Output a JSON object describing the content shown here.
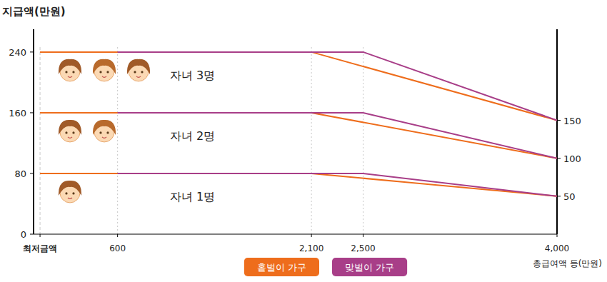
{
  "chart_data": {
    "type": "line",
    "y_label": "지급액(만원)",
    "x_label": "총급여액 등(만원)",
    "xlim": [
      -50,
      4000
    ],
    "xticks": [
      {
        "value": 0,
        "label": "최저금액"
      },
      600,
      {
        "value": 2100,
        "label": "2,100"
      },
      {
        "value": 2500,
        "label": "2,500"
      },
      {
        "value": 4000,
        "label": "4,000"
      }
    ],
    "ylim": [
      0,
      270
    ],
    "yticks": [
      0,
      80,
      160,
      240
    ],
    "y2lim": [
      0,
      270
    ],
    "y2ticks": [
      50,
      100,
      150
    ],
    "grid": true,
    "legend": "bottom",
    "series": [
      {
        "name": "홑벌이 가구",
        "color": "#ee6d1c",
        "group": "자녀 3명",
        "x": [
          0,
          2100,
          4000
        ],
        "values": [
          240,
          240,
          150
        ]
      },
      {
        "name": "맞벌이 가구",
        "color": "#a83e88",
        "x": [
          600,
          2500,
          4000
        ],
        "values": [
          240,
          240,
          150
        ]
      },
      {
        "name": "홑벌이 가구",
        "color": "#ee6d1c",
        "group": "자녀 2명",
        "x": [
          0,
          2100,
          4000
        ],
        "values": [
          160,
          160,
          100
        ]
      },
      {
        "name": "맞벌이 가구",
        "color": "#a83e88",
        "x": [
          600,
          2500,
          4000
        ],
        "values": [
          160,
          160,
          100
        ]
      },
      {
        "name": "홑벌이 가구",
        "color": "#ee6d1c",
        "group": "자녀 1명",
        "x": [
          0,
          2100,
          4000
        ],
        "values": [
          80,
          80,
          50
        ]
      },
      {
        "name": "맞벌이 가구",
        "color": "#a83e88",
        "x": [
          600,
          2500,
          4000
        ],
        "values": [
          80,
          80,
          50
        ]
      }
    ]
  }
}
